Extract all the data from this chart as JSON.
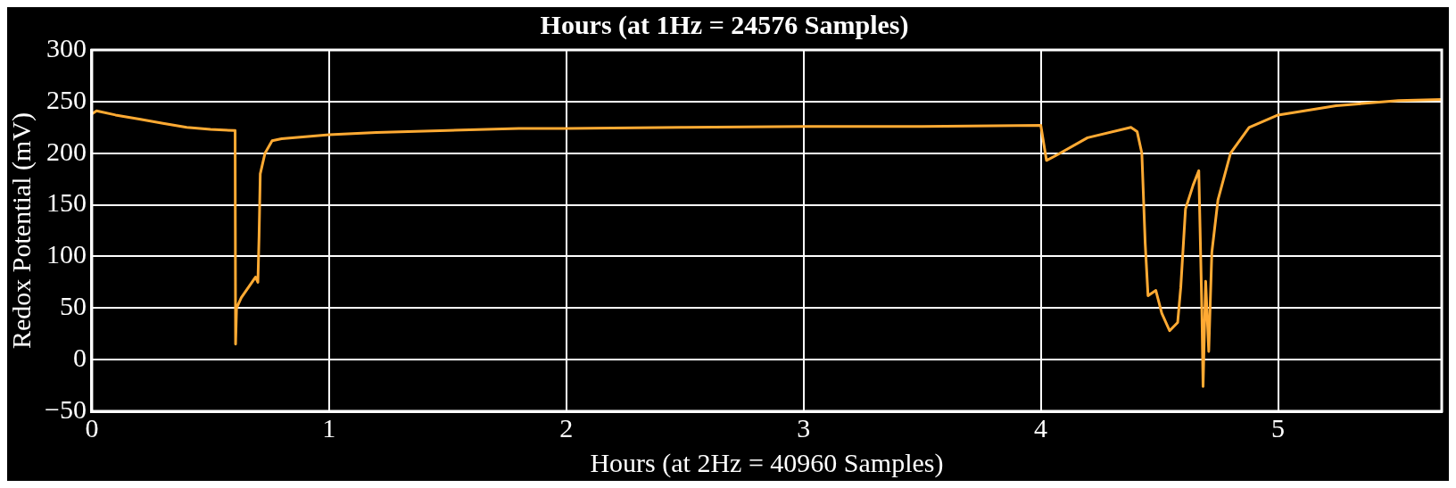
{
  "chart_data": {
    "type": "line",
    "title": "Hours (at 1Hz = 24576 Samples)",
    "xlabel": "Hours (at 2Hz = 40960 Samples)",
    "ylabel": "Redox Potential (mV)",
    "xlim": [
      0,
      5.69
    ],
    "xticks": [
      0,
      1,
      2,
      3,
      4,
      5
    ],
    "ylim": [
      -50,
      300
    ],
    "yticks": [
      {
        "value": -50,
        "label": "−50"
      },
      0,
      50,
      100,
      150,
      200,
      250,
      300
    ],
    "grid": true,
    "line_style": "solid",
    "marker": "none",
    "series": [
      {
        "color": "#ffaa33",
        "x": [
          0,
          0.02,
          0.1,
          0.2,
          0.3,
          0.4,
          0.5,
          0.6,
          0.604,
          0.606,
          0.61,
          0.63,
          0.66,
          0.69,
          0.7,
          0.705,
          0.71,
          0.73,
          0.76,
          0.8,
          0.9,
          1.0,
          1.2,
          1.5,
          1.8,
          2.0,
          2.5,
          3.0,
          3.5,
          4.0,
          4.024,
          4.066,
          4.197,
          4.38,
          4.406,
          4.426,
          4.44,
          4.452,
          4.485,
          4.51,
          4.543,
          4.577,
          4.59,
          4.61,
          4.642,
          4.666,
          4.679,
          4.684,
          4.695,
          4.708,
          4.721,
          4.747,
          4.8,
          4.878,
          5.0,
          5.245,
          5.507,
          5.69
        ],
        "values": [
          238,
          241,
          237,
          233,
          229,
          225,
          223,
          222,
          222,
          15,
          50,
          60,
          70,
          80,
          75,
          120,
          180,
          200,
          212,
          214,
          216,
          218,
          220,
          222,
          224,
          224,
          225,
          226,
          226,
          227,
          193,
          198,
          215,
          225,
          221,
          200,
          113,
          62,
          67,
          45,
          28,
          36,
          70,
          146,
          169,
          183,
          48,
          -26,
          76,
          8,
          104,
          155,
          200,
          225,
          237,
          246,
          251,
          252
        ]
      }
    ]
  }
}
